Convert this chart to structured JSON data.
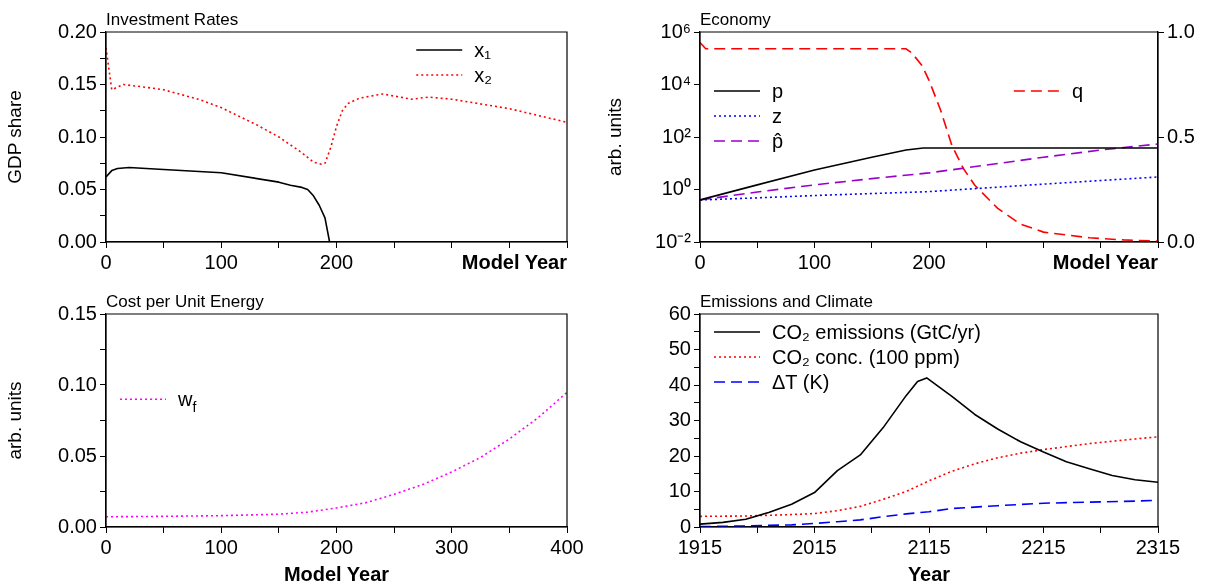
{
  "chart_data": [
    {
      "type": "line",
      "title": "Investment Rates",
      "xlabel": "Model Year",
      "ylabel": "GDP share",
      "legend": "top right",
      "xlim": [
        0,
        400
      ],
      "xticks": [
        0,
        {
          "value": 50,
          "label": null
        },
        100,
        {
          "value": 150,
          "label": null
        },
        200,
        {
          "value": 250,
          "label": null
        },
        {
          "value": 300,
          "label": null
        },
        {
          "value": 350,
          "label": null
        },
        {
          "value": 400,
          "label": null
        }
      ],
      "ylim": [
        0,
        0.2
      ],
      "yticks": [
        {
          "value": 0,
          "label": "0.00"
        },
        {
          "value": 0.025,
          "label": null
        },
        {
          "value": 0.05,
          "label": "0.05"
        },
        {
          "value": 0.075,
          "label": null
        },
        {
          "value": 0.1,
          "label": "0.10"
        },
        {
          "value": 0.125,
          "label": null
        },
        {
          "value": 0.15,
          "label": "0.15"
        },
        {
          "value": 0.175,
          "label": null
        },
        {
          "value": 0.2,
          "label": "0.20"
        }
      ],
      "series": [
        {
          "name": "x₁",
          "color": "#000000",
          "line_style": "solid",
          "x": [
            0,
            5,
            10,
            20,
            50,
            100,
            150,
            160,
            170,
            175,
            180,
            185,
            190,
            194,
            250,
            300,
            400
          ],
          "values": [
            0.062,
            0.068,
            0.07,
            0.071,
            0.069,
            0.066,
            0.057,
            0.054,
            0.052,
            0.05,
            0.044,
            0.035,
            0.023,
            0,
            0,
            0,
            0
          ]
        },
        {
          "name": "x₂",
          "color": "#ff0000",
          "line_style": "dotted",
          "x": [
            0,
            5,
            15,
            30,
            50,
            80,
            100,
            130,
            150,
            170,
            180,
            187,
            190,
            195,
            200,
            205,
            210,
            220,
            240,
            255,
            265,
            280,
            300,
            350,
            400
          ],
          "values": [
            0.185,
            0.145,
            0.15,
            0.148,
            0.145,
            0.136,
            0.128,
            0.112,
            0.1,
            0.085,
            0.076,
            0.074,
            0.075,
            0.09,
            0.11,
            0.125,
            0.132,
            0.137,
            0.141,
            0.138,
            0.136,
            0.138,
            0.136,
            0.127,
            0.114
          ]
        }
      ]
    },
    {
      "type": "line",
      "title": "Economy",
      "xlabel": "Model Year",
      "ylabel": "arb. units",
      "legend": "left",
      "log": "y",
      "xlim": [
        0,
        400
      ],
      "xticks": [
        0,
        {
          "value": 50,
          "label": null
        },
        100,
        {
          "value": 150,
          "label": null
        },
        200,
        {
          "value": 250,
          "label": null
        },
        {
          "value": 300,
          "label": null
        },
        {
          "value": 350,
          "label": null
        },
        {
          "value": 400,
          "label": null
        }
      ],
      "ylim": [
        0.01,
        1000000
      ],
      "yticks": [
        {
          "value": 0.01,
          "label": "10⁻²"
        },
        {
          "value": 1,
          "label": "10⁰"
        },
        {
          "value": 100,
          "label": "10²"
        },
        {
          "value": 10000,
          "label": "10⁴"
        },
        {
          "value": 1000000,
          "label": "10⁶"
        }
      ],
      "y2lim": [
        0,
        1
      ],
      "y2ticks": [
        {
          "value": 0,
          "label": "0.0"
        },
        0.5,
        {
          "value": 1,
          "label": "1.0"
        }
      ],
      "series": [
        {
          "name": "p",
          "color": "#000000",
          "line_style": "solid",
          "x": [
            0,
            50,
            100,
            150,
            180,
            195,
            250,
            300,
            400
          ],
          "values": [
            0.4,
            1.5,
            5.5,
            17,
            32,
            38,
            38,
            38,
            38
          ]
        },
        {
          "name": "z",
          "color": "#0000ff",
          "line_style": "dotted",
          "x": [
            0,
            50,
            100,
            150,
            200,
            250,
            300,
            350,
            400
          ],
          "values": [
            0.4,
            0.48,
            0.59,
            0.7,
            0.83,
            1.15,
            1.6,
            2.2,
            3
          ]
        },
        {
          "name": "p̂",
          "color": "#9900cc",
          "line_style": "dashed",
          "x": [
            0,
            50,
            100,
            150,
            200,
            250,
            300,
            350,
            400
          ],
          "values": [
            0.4,
            0.8,
            1.5,
            2.6,
            4.3,
            8.5,
            17,
            32,
            54
          ]
        },
        {
          "name": "q",
          "color": "#ff0000",
          "line_style": "dashed",
          "axis": "y2",
          "x": [
            0,
            5,
            50,
            100,
            150,
            180,
            185,
            194,
            200,
            210,
            220,
            230,
            240,
            260,
            280,
            300,
            340,
            370,
            400
          ],
          "values": [
            0.95,
            0.92,
            0.92,
            0.92,
            0.92,
            0.92,
            0.9,
            0.84,
            0.77,
            0.63,
            0.46,
            0.35,
            0.27,
            0.16,
            0.085,
            0.047,
            0.02,
            0.01,
            0.004
          ]
        }
      ]
    },
    {
      "type": "line",
      "title": "Cost per Unit Energy",
      "xlabel": "Model Year",
      "ylabel": "arb. units",
      "legend": "left",
      "xlim": [
        0,
        400
      ],
      "xticks": [
        0,
        {
          "value": 50,
          "label": null
        },
        100,
        {
          "value": 150,
          "label": null
        },
        200,
        {
          "value": 250,
          "label": null
        },
        300,
        {
          "value": 350,
          "label": null
        },
        400
      ],
      "ylim": [
        0,
        0.15
      ],
      "yticks": [
        {
          "value": 0,
          "label": "0.00"
        },
        {
          "value": 0.025,
          "label": null
        },
        {
          "value": 0.05,
          "label": "0.05"
        },
        {
          "value": 0.075,
          "label": null
        },
        {
          "value": 0.1,
          "label": "0.10"
        },
        {
          "value": 0.125,
          "label": null
        },
        {
          "value": 0.15,
          "label": "0.15"
        }
      ],
      "series": [
        {
          "name": "w$_{f}$",
          "color": "#ff00ff",
          "line_style": "dotted",
          "x": [
            0,
            50,
            100,
            150,
            175,
            200,
            225,
            250,
            275,
            300,
            325,
            350,
            375,
            400
          ],
          "values": [
            0.0072,
            0.0075,
            0.008,
            0.009,
            0.0105,
            0.0134,
            0.017,
            0.023,
            0.03,
            0.0388,
            0.049,
            0.062,
            0.077,
            0.0948
          ]
        }
      ]
    },
    {
      "type": "line",
      "title": "Emissions and Climate",
      "xlabel": "Year",
      "legend": "top left",
      "xlim": [
        1915,
        2315
      ],
      "xticks": [
        1915,
        {
          "value": 1965,
          "label": null
        },
        2015,
        {
          "value": 2065,
          "label": null
        },
        2115,
        {
          "value": 2165,
          "label": null
        },
        2215,
        {
          "value": 2265,
          "label": null
        },
        2315
      ],
      "ylim": [
        0,
        60
      ],
      "yticks": [
        0,
        {
          "value": 5,
          "label": null
        },
        10,
        {
          "value": 15,
          "label": null
        },
        20,
        {
          "value": 25,
          "label": null
        },
        30,
        {
          "value": 35,
          "label": null
        },
        40,
        {
          "value": 45,
          "label": null
        },
        50,
        {
          "value": 55,
          "label": null
        },
        60
      ],
      "series": [
        {
          "name": "CO₂ emissions (GtC/yr)",
          "color": "#000000",
          "line_style": "solid",
          "x": [
            1915,
            1935,
            1955,
            1975,
            1995,
            2015,
            2035,
            2055,
            2075,
            2095,
            2105,
            2113,
            2135,
            2155,
            2175,
            2195,
            2215,
            2235,
            2255,
            2275,
            2295,
            2315
          ],
          "values": [
            0.8,
            1.3,
            2.2,
            4.1,
            6.4,
            9.7,
            15.9,
            20.3,
            28,
            37,
            41,
            42,
            36.8,
            31.7,
            27.6,
            24,
            21.1,
            18.4,
            16.4,
            14.5,
            13.3,
            12.6
          ]
        },
        {
          "name": "CO₂ conc. (100 ppm)",
          "color": "#ff0000",
          "line_style": "dotted",
          "x": [
            1915,
            1955,
            1995,
            2015,
            2035,
            2055,
            2075,
            2095,
            2115,
            2135,
            2155,
            2175,
            2195,
            2215,
            2255,
            2295,
            2315
          ],
          "values": [
            3,
            3.1,
            3.5,
            3.8,
            4.6,
            5.8,
            7.8,
            10,
            13,
            15.7,
            17.8,
            19.5,
            20.8,
            21.8,
            23.5,
            24.8,
            25.4
          ]
        },
        {
          "name": "ΔT (K)",
          "color": "#0000ff",
          "line_style": "dashed",
          "x": [
            1915,
            1955,
            1995,
            2015,
            2035,
            2055,
            2075,
            2095,
            2115,
            2135,
            2155,
            2175,
            2215,
            2255,
            2295,
            2315
          ],
          "values": [
            0.1,
            0.3,
            0.6,
            1,
            1.5,
            2,
            2.9,
            3.7,
            4.3,
            5.2,
            5.6,
            6,
            6.7,
            7,
            7.3,
            7.5
          ]
        }
      ]
    }
  ]
}
